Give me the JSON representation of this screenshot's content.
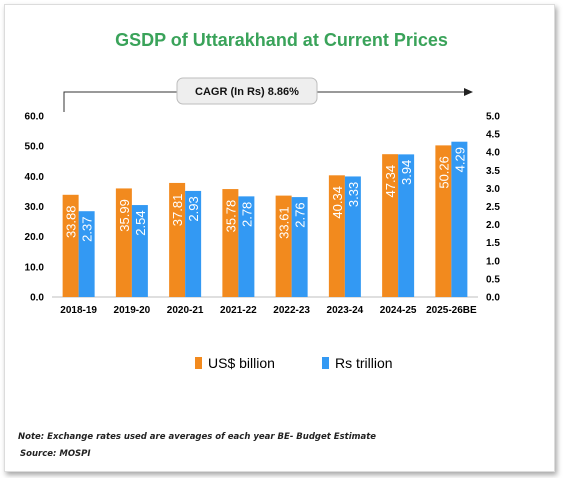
{
  "chart_data": {
    "type": "bar",
    "title": "GSDP of Uttarakhand at Current Prices",
    "annotation": "CAGR (In Rs) 8.86%",
    "categories": [
      "2018-19",
      "2019-20",
      "2020-21",
      "2021-22",
      "2022-23",
      "2023-24",
      "2024-25",
      "2025-26BE"
    ],
    "series": [
      {
        "name": "US$ billion",
        "axis": "left",
        "color": "#f28a1e",
        "values": [
          33.88,
          35.99,
          37.81,
          35.78,
          33.61,
          40.34,
          47.34,
          50.26
        ]
      },
      {
        "name": "Rs trillion",
        "axis": "right",
        "color": "#3399f3",
        "values": [
          2.37,
          2.54,
          2.93,
          2.78,
          2.76,
          3.33,
          3.94,
          4.29
        ]
      }
    ],
    "y_left": {
      "ylim": [
        0,
        60
      ],
      "ticks": [
        "0.0",
        "10.0",
        "20.0",
        "30.0",
        "40.0",
        "50.0",
        "60.0"
      ]
    },
    "y_right": {
      "ylim": [
        0,
        5
      ],
      "ticks": [
        "0.0",
        "0.5",
        "1.0",
        "1.5",
        "2.0",
        "2.5",
        "3.0",
        "3.5",
        "4.0",
        "4.5",
        "5.0"
      ]
    },
    "grid": false,
    "legend": "bottom-center"
  },
  "notes": {
    "exchange": "Note: Exchange rates used are averages of each year BE- Budget Estimate",
    "source": "Source: MOSPI"
  }
}
